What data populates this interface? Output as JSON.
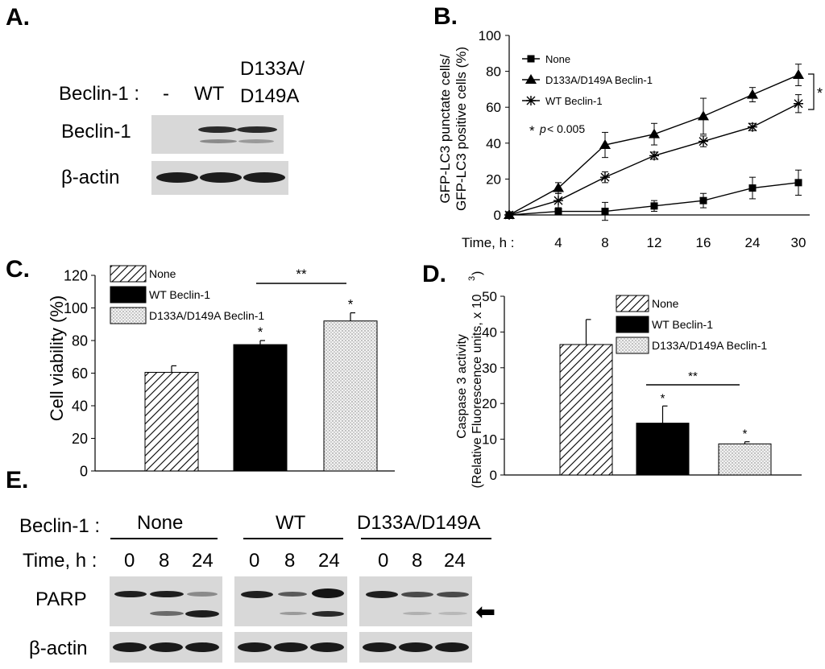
{
  "panelA": {
    "label": "A.",
    "row_title": "Beclin-1 :",
    "lanes": [
      "-",
      "WT",
      "D133A/",
      "D149A"
    ],
    "blot_labels": [
      "Beclin-1",
      "β-actin"
    ]
  },
  "panelE": {
    "label": "E.",
    "beclin_title": "Beclin-1 :",
    "time_title": "Time, h :",
    "groups": [
      "None",
      "WT",
      "D133A/D149A"
    ],
    "times": [
      "0",
      "8",
      "24"
    ],
    "blot_labels": [
      "PARP",
      "β-actin"
    ],
    "arrow": "⬅"
  },
  "chart_data": [
    {
      "panel": "B.",
      "type": "line",
      "ylabel_line1": "GFP-LC3 punctate cells/",
      "ylabel_line2": "GFP-LC3 positive cells (%)",
      "x_title": "Time, h :",
      "categories": [
        "0",
        "4",
        "8",
        "12",
        "16",
        "24",
        "30"
      ],
      "tick_labels": [
        "4",
        "8",
        "12",
        "16",
        "24",
        "30"
      ],
      "ylim": [
        0,
        100
      ],
      "yticks": [
        "0",
        "20",
        "40",
        "60",
        "80",
        "100"
      ],
      "series": [
        {
          "name": "None",
          "marker": "square",
          "values": [
            0,
            2,
            2,
            5,
            8,
            15,
            18
          ],
          "errors": [
            0,
            2,
            5,
            3,
            4,
            6,
            7
          ]
        },
        {
          "name": "D133A/D149A Beclin-1",
          "marker": "triangle",
          "values": [
            0,
            15,
            39,
            45,
            55,
            67,
            78
          ],
          "errors": [
            0,
            3,
            7,
            6,
            10,
            4,
            6
          ]
        },
        {
          "name": "WT Beclin-1",
          "marker": "star",
          "values": [
            0,
            8,
            21,
            33,
            41,
            49,
            62
          ],
          "errors": [
            0,
            4,
            3,
            2,
            3,
            2,
            5
          ]
        }
      ],
      "annotation_star": "*",
      "annotation_text": "p< 0.005",
      "annotation_p": "p",
      "annotation_rest": "< 0.005",
      "bracket_star": "*"
    },
    {
      "panel": "C.",
      "type": "bar",
      "ylabel": "Cell viability (%)",
      "ylim": [
        0,
        120
      ],
      "yticks": [
        "0",
        "20",
        "40",
        "60",
        "80",
        "100",
        "120"
      ],
      "categories": [
        "None",
        "WT Beclin-1",
        "D133A/D149A Beclin-1"
      ],
      "values": [
        60.5,
        77.5,
        92
      ],
      "errors": [
        4,
        2.5,
        5
      ],
      "stars": [
        "",
        "*",
        "*"
      ],
      "significance": "**"
    },
    {
      "panel": "D.",
      "type": "bar",
      "ylabel_line1": "Caspase 3 activity",
      "ylabel_line2": "(Relative Fluorescence units, x 10",
      "ylabel_sup": "3",
      "ylabel_end": ")",
      "ylim": [
        0,
        50
      ],
      "yticks": [
        "0",
        "10",
        "20",
        "30",
        "40",
        "50"
      ],
      "categories": [
        "None",
        "WT Beclin-1",
        "D133A/D149A Beclin-1"
      ],
      "values": [
        36.5,
        14.5,
        8.7
      ],
      "errors": [
        7,
        4.8,
        0.6
      ],
      "stars": [
        "",
        "*",
        "*"
      ],
      "significance": "**"
    }
  ],
  "colors": {
    "line": "#000000",
    "blot_bg": "#d6d6d6",
    "band": "#1a1a1a"
  }
}
